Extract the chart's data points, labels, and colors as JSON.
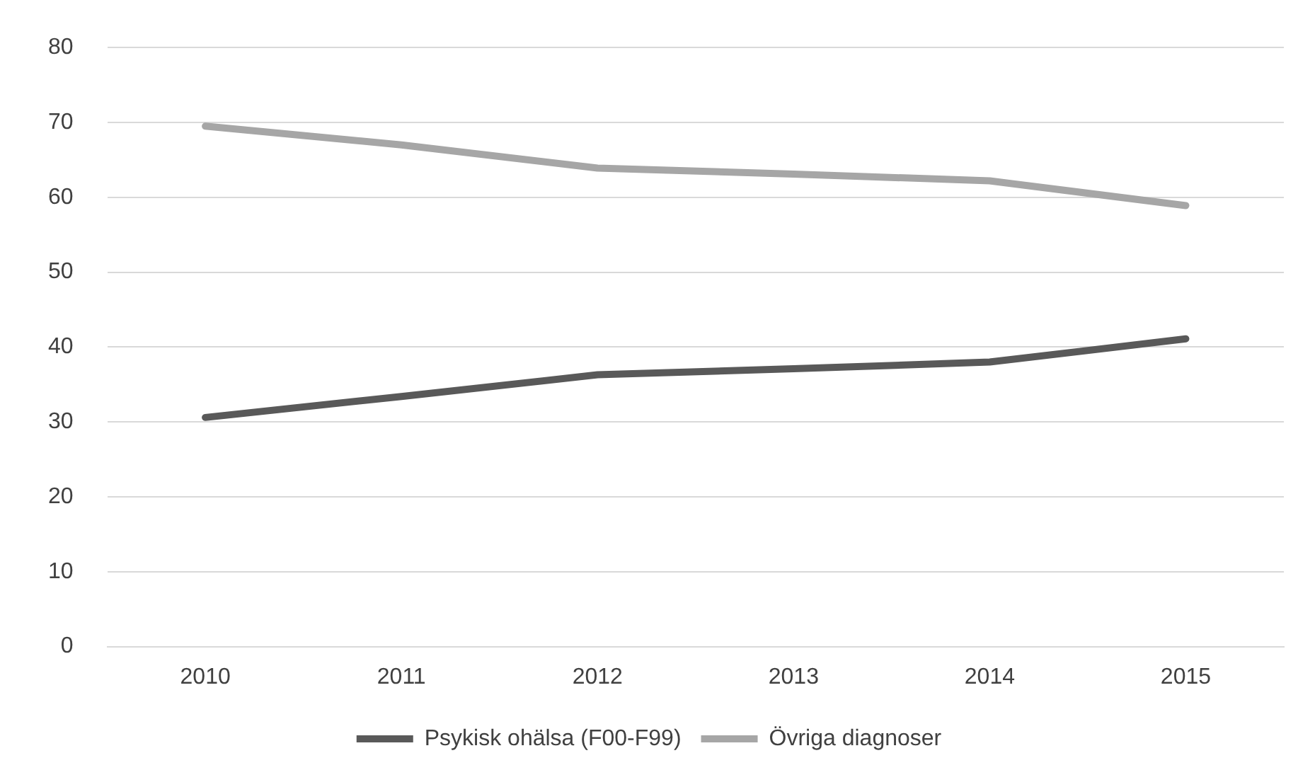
{
  "chart_data": {
    "type": "line",
    "categories": [
      "2010",
      "2011",
      "2012",
      "2013",
      "2014",
      "2015"
    ],
    "series": [
      {
        "name": "Psykisk ohälsa (F00-F99)",
        "color": "#595959",
        "values": [
          30.6,
          33.4,
          36.3,
          37.1,
          38.0,
          41.1
        ]
      },
      {
        "name": "Övriga diagnoser",
        "color": "#a6a6a6",
        "values": [
          69.5,
          67.0,
          63.9,
          63.1,
          62.2,
          58.9
        ]
      }
    ],
    "ylim": [
      0,
      80
    ],
    "yticks": [
      0,
      10,
      20,
      30,
      40,
      50,
      60,
      70,
      80
    ],
    "grid": "y",
    "legend": "bottom",
    "marker": "none",
    "line_style": "solid"
  }
}
